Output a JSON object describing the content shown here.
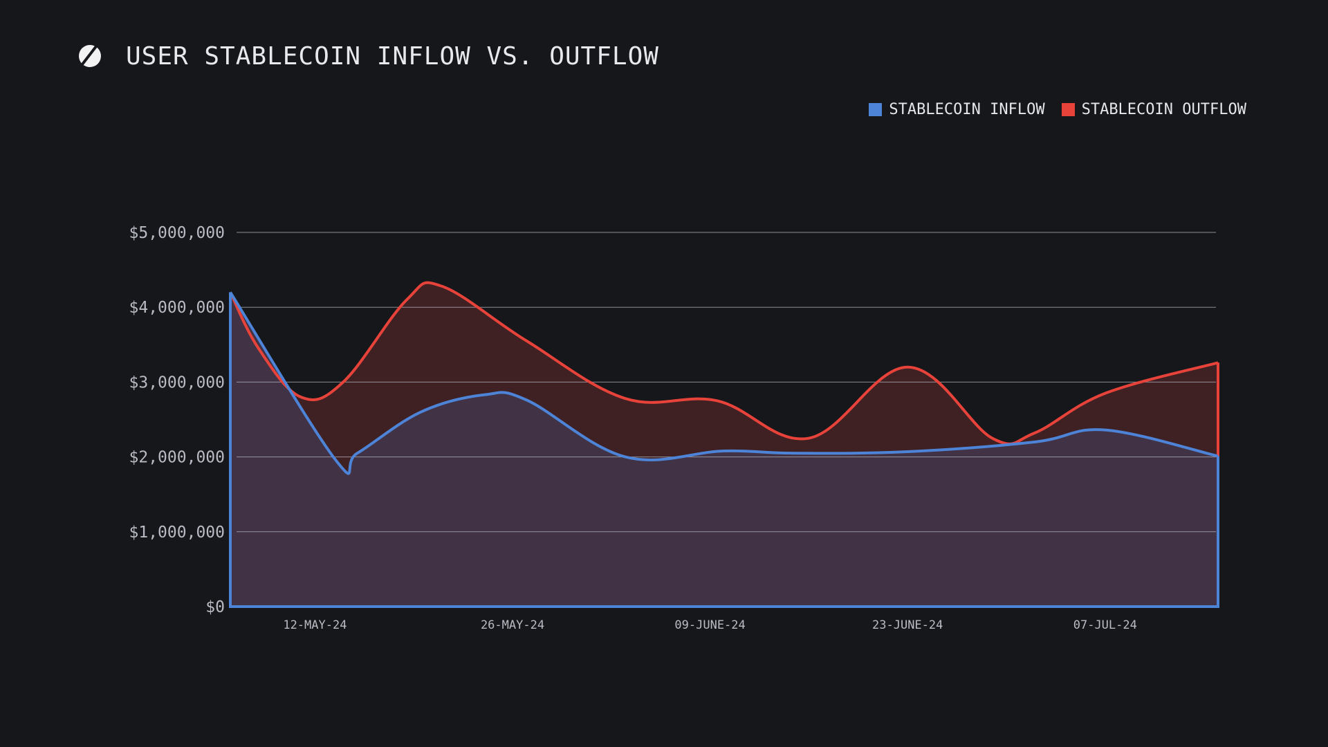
{
  "header": {
    "logo_icon": "stablecoin-logo-icon",
    "title": "USER STABLECOIN INFLOW VS. OUTFLOW"
  },
  "legend": {
    "items": [
      {
        "label": "STABLECOIN INFLOW",
        "color": "#4d84d8"
      },
      {
        "label": "STABLECOIN OUTFLOW",
        "color": "#e8433a"
      }
    ]
  },
  "chart_data": {
    "type": "area",
    "title": "USER STABLECOIN INFLOW VS. OUTFLOW",
    "xlabel": "",
    "ylabel": "",
    "ylim": [
      0,
      5000000
    ],
    "yticks": [
      {
        "value": 0,
        "label": "$0"
      },
      {
        "value": 1000000,
        "label": "$1,000,000"
      },
      {
        "value": 2000000,
        "label": "$2,000,000"
      },
      {
        "value": 3000000,
        "label": "$3,000,000"
      },
      {
        "value": 4000000,
        "label": "$4,000,000"
      },
      {
        "value": 5000000,
        "label": "$5,000,000"
      }
    ],
    "xlim": [
      0,
      70
    ],
    "xticks": [
      {
        "day": 6,
        "label": "12-MAY-24"
      },
      {
        "day": 20,
        "label": "26-MAY-24"
      },
      {
        "day": 34,
        "label": "09-JUNE-24"
      },
      {
        "day": 48,
        "label": "23-JUNE-24"
      },
      {
        "day": 62,
        "label": "07-JUL-24"
      }
    ],
    "x_unit": "days since 06-MAY-24",
    "grid": true,
    "legend_position": "top-right",
    "series": [
      {
        "name": "STABLECOIN OUTFLOW",
        "color": "#e8433a",
        "fill": "#3f2123",
        "points": [
          [
            0,
            4200000
          ],
          [
            2,
            3450000
          ],
          [
            5,
            2800000
          ],
          [
            8,
            3000000
          ],
          [
            12.5,
            4100000
          ],
          [
            15,
            4280000
          ],
          [
            21,
            3550000
          ],
          [
            28,
            2780000
          ],
          [
            34.5,
            2750000
          ],
          [
            41,
            2250000
          ],
          [
            48,
            3200000
          ],
          [
            54,
            2250000
          ],
          [
            57,
            2320000
          ],
          [
            62,
            2850000
          ],
          [
            70,
            3260000
          ]
        ]
      },
      {
        "name": "STABLECOIN INFLOW",
        "color": "#4d84d8",
        "fill": "#413345",
        "points": [
          [
            0,
            4200000
          ],
          [
            7.5,
            1950000
          ],
          [
            9,
            2050000
          ],
          [
            13.5,
            2600000
          ],
          [
            18,
            2830000
          ],
          [
            21,
            2760000
          ],
          [
            28,
            2000000
          ],
          [
            35,
            2080000
          ],
          [
            40,
            2050000
          ],
          [
            48,
            2070000
          ],
          [
            57,
            2200000
          ],
          [
            62,
            2360000
          ],
          [
            70,
            2010000
          ]
        ]
      }
    ]
  }
}
